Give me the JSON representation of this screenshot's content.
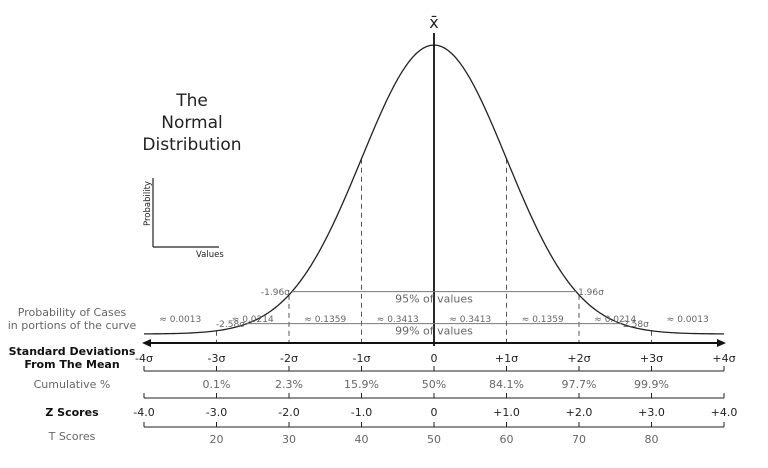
{
  "title_lines": [
    "The",
    "Normal",
    "Distribution"
  ],
  "inset": {
    "y_label": "Probability",
    "x_label": "Values"
  },
  "mean_symbol": "x̄",
  "intervals": [
    {
      "lower": "-1.96σ",
      "upper": "1.96σ",
      "text": "95% of values",
      "sigma": 1.96
    },
    {
      "lower": "-2.58σ",
      "upper": "2.58σ",
      "text": "99% of values",
      "sigma": 2.58
    }
  ],
  "case_probabilities": {
    "label_lines": [
      "Probability of Cases",
      "in portions of the curve"
    ],
    "values": [
      "≈ 0.0013",
      "≈ 0.0214",
      "≈ 0.1359",
      "≈ 0.3413",
      "≈ 0.3413",
      "≈ 0.1359",
      "≈ 0.0214",
      "≈ 0.0013"
    ]
  },
  "std_devs": {
    "label_lines": [
      "Standard Deviations",
      "From The Mean"
    ],
    "ticks": [
      "-4σ",
      "-3σ",
      "-2σ",
      "-1σ",
      "0",
      "+1σ",
      "+2σ",
      "+3σ",
      "+4σ"
    ]
  },
  "cumulative": {
    "label": "Cumulative %",
    "values": [
      "0.1%",
      "2.3%",
      "15.9%",
      "50%",
      "84.1%",
      "97.7%",
      "99.9%"
    ]
  },
  "z_scores": {
    "label": "Z Scores",
    "values": [
      "-4.0",
      "-3.0",
      "-2.0",
      "-1.0",
      "0",
      "+1.0",
      "+2.0",
      "+3.0",
      "+4.0"
    ]
  },
  "t_scores": {
    "label": "T Scores",
    "values": [
      "20",
      "30",
      "40",
      "50",
      "60",
      "70",
      "80"
    ]
  }
}
